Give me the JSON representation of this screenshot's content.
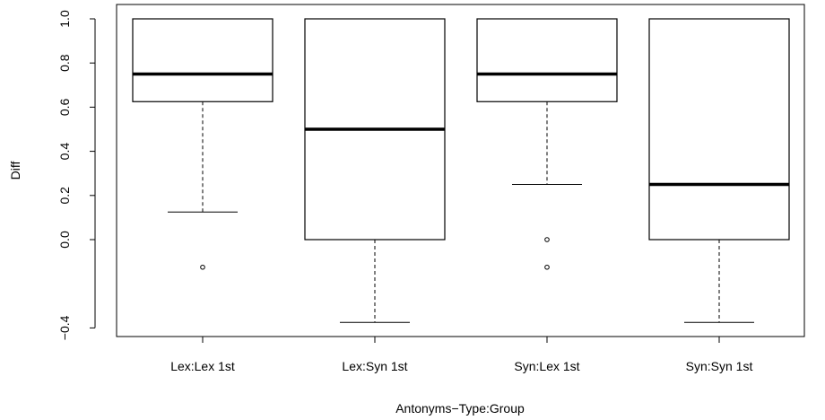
{
  "chart_data": {
    "type": "boxplot",
    "title": "",
    "xlabel": "Antonyms−Type:Group",
    "ylabel": "Diff",
    "ylim": [
      -0.4,
      1.0
    ],
    "yticks": [
      -0.4,
      0.0,
      0.2,
      0.4,
      0.6,
      0.8,
      1.0
    ],
    "ytick_labels": [
      "−0.4",
      "0.0",
      "0.2",
      "0.4",
      "0.6",
      "0.8",
      "1.0"
    ],
    "grid": false,
    "colors": {
      "box_fill": "#ffffff",
      "stroke": "#000000"
    },
    "categories": [
      "Lex:Lex 1st",
      "Lex:Syn 1st",
      "Syn:Lex 1st",
      "Syn:Syn 1st"
    ],
    "boxes": [
      {
        "whisker_low": 0.125,
        "q1": 0.625,
        "median": 0.75,
        "q3": 1.0,
        "whisker_high": 1.0,
        "outliers": [
          -0.125
        ]
      },
      {
        "whisker_low": -0.375,
        "q1": 0.0,
        "median": 0.5,
        "q3": 1.0,
        "whisker_high": 1.0,
        "outliers": []
      },
      {
        "whisker_low": 0.25,
        "q1": 0.625,
        "median": 0.75,
        "q3": 1.0,
        "whisker_high": 1.0,
        "outliers": [
          0.0,
          -0.125
        ]
      },
      {
        "whisker_low": -0.375,
        "q1": 0.0,
        "median": 0.25,
        "q3": 1.0,
        "whisker_high": 1.0,
        "outliers": []
      }
    ]
  }
}
